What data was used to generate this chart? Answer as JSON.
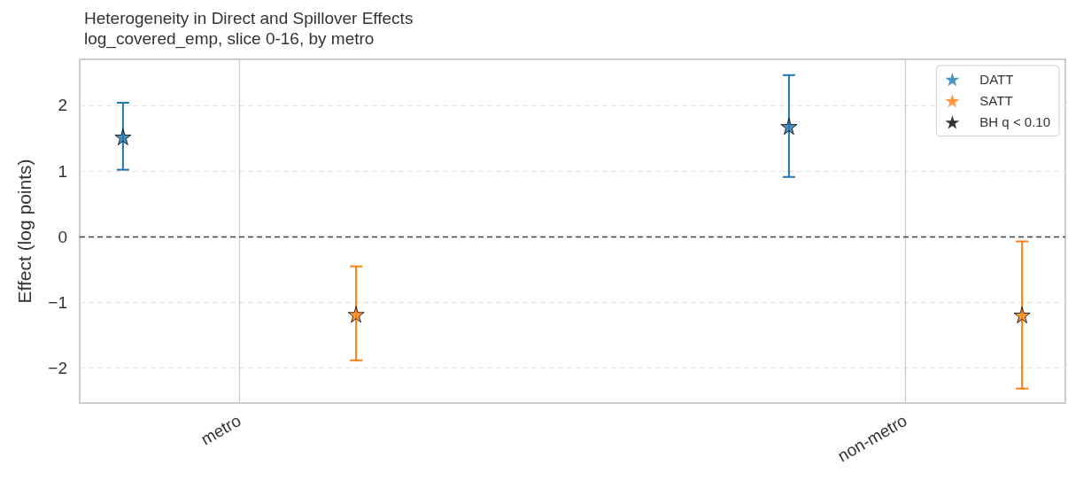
{
  "chart_data": {
    "type": "scatter",
    "title": "Heterogeneity in Direct and Spillover Effects",
    "subtitle": "log_covered_emp, slice 0-16, by metro",
    "ylabel": "Effect (log points)",
    "categories": [
      "metro",
      "non-metro"
    ],
    "ylim": [
      -2.53,
      2.7
    ],
    "yticks": [
      -2,
      -1,
      0,
      1,
      2
    ],
    "series": [
      {
        "name": "DATT",
        "color": "#1f77b4",
        "values": [
          1.52,
          1.68
        ],
        "errors": [
          [
            1.02,
            2.04
          ],
          [
            0.91,
            2.46
          ]
        ]
      },
      {
        "name": "SATT",
        "color": "#ff7f0e",
        "values": [
          -1.18,
          -1.19
        ],
        "errors": [
          [
            -1.88,
            -0.45
          ],
          [
            -2.31,
            -0.07
          ]
        ]
      },
      {
        "name": "BH q < 0.10",
        "color": "#000000",
        "x": [
          "metro",
          "non-metro",
          "metro",
          "non-metro"
        ],
        "values": [
          1.52,
          1.68,
          -1.18,
          -1.19
        ]
      }
    ],
    "ref_lines": [
      {
        "axis": "y",
        "value": 0,
        "color": "#444444",
        "line_style": "dashed"
      }
    ],
    "marker": "star",
    "grid": true,
    "legend": "top right"
  }
}
